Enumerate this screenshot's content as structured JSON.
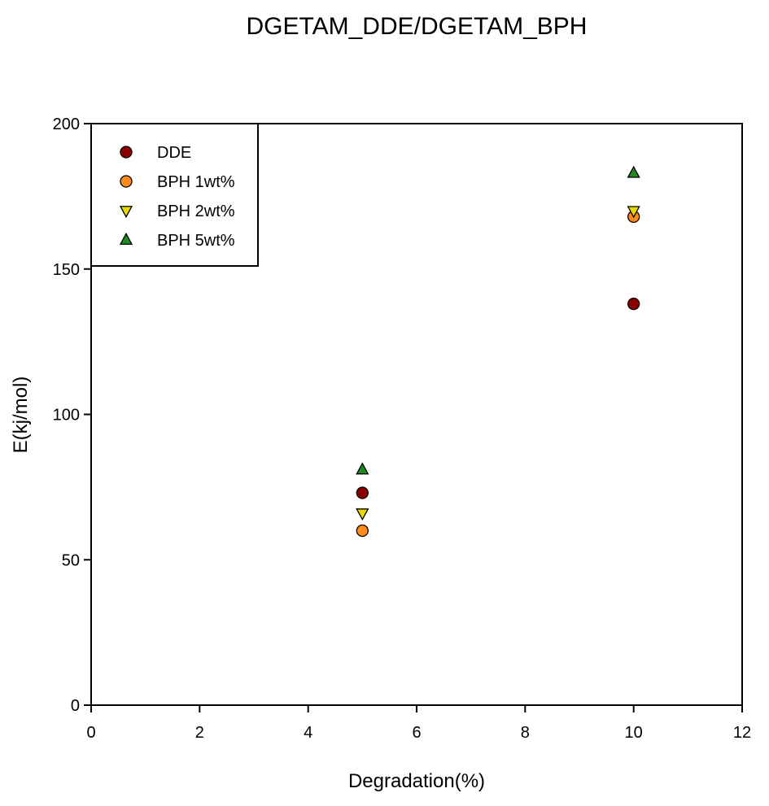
{
  "chart_data": {
    "type": "scatter",
    "title": "DGETAM_DDE/DGETAM_BPH",
    "xlabel": "Degradation(%)",
    "ylabel": "E(kj/mol)",
    "xlim": [
      0,
      12
    ],
    "ylim": [
      0,
      200
    ],
    "xticks": [
      "0",
      "2",
      "4",
      "6",
      "8",
      "10",
      "12"
    ],
    "yticks": [
      "0",
      "50",
      "100",
      "150",
      "200"
    ],
    "legend_position": "top-left",
    "grid": false,
    "series": [
      {
        "name": "DDE",
        "marker": "circle",
        "color": "#8b0000",
        "x": [
          5,
          10
        ],
        "y": [
          73,
          138
        ]
      },
      {
        "name": "BPH 1wt%",
        "marker": "circle",
        "color": "#ff8c1a",
        "x": [
          5,
          10
        ],
        "y": [
          60,
          168
        ]
      },
      {
        "name": "BPH 2wt%",
        "marker": "triangle-down",
        "color": "#e6d800",
        "x": [
          5,
          10
        ],
        "y": [
          66,
          170
        ]
      },
      {
        "name": "BPH 5wt%",
        "marker": "triangle-up",
        "color": "#1f8a1f",
        "x": [
          5,
          10
        ],
        "y": [
          81,
          183
        ]
      }
    ]
  }
}
